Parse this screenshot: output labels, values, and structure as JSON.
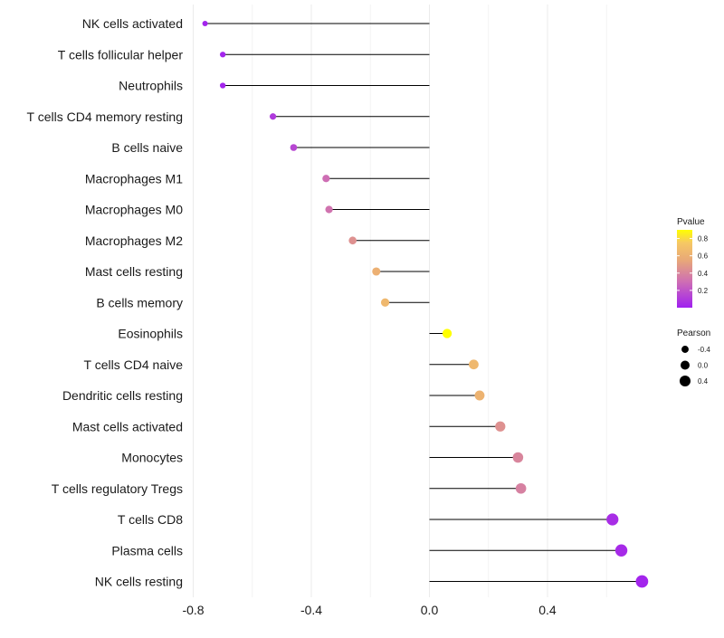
{
  "chart_data": {
    "type": "lollipop",
    "categories": [
      "NK cells activated",
      "T cells follicular helper",
      "Neutrophils",
      "T cells CD4 memory resting",
      "B cells naive",
      "Macrophages M1",
      "Macrophages M0",
      "Macrophages M2",
      "Mast cells resting",
      "B cells memory",
      "Eosinophils",
      "T cells CD4 naive",
      "Dendritic cells resting",
      "Mast cells activated",
      "Monocytes",
      "T cells regulatory  Tregs",
      "T cells CD8",
      "Plasma cells",
      "NK cells resting"
    ],
    "values": [
      -0.76,
      -0.7,
      -0.7,
      -0.53,
      -0.46,
      -0.35,
      -0.34,
      -0.26,
      -0.18,
      -0.15,
      0.06,
      0.15,
      0.17,
      0.24,
      0.3,
      0.31,
      0.62,
      0.65,
      0.72
    ],
    "pvalues": [
      0.02,
      0.02,
      0.02,
      0.1,
      0.15,
      0.3,
      0.32,
      0.45,
      0.6,
      0.65,
      0.9,
      0.65,
      0.62,
      0.45,
      0.4,
      0.38,
      0.05,
      0.04,
      0.02
    ],
    "xlim": [
      -0.82,
      0.82
    ],
    "xticks": [
      "-0.8",
      "-0.4",
      "0.0",
      "0.4"
    ],
    "xtick_values": [
      -0.8,
      -0.4,
      0.0,
      0.4
    ],
    "xlabel": "",
    "ylabel": "",
    "legend": {
      "color": {
        "title": "Pvalue",
        "ticks": [
          "0.8",
          "0.6",
          "0.4",
          "0.2"
        ],
        "tick_values": [
          0.8,
          0.6,
          0.4,
          0.2
        ],
        "range": [
          0.0,
          0.9
        ],
        "low_color": "#a020f0",
        "high_color": "#ffff00"
      },
      "size": {
        "title": "Pearson",
        "labels": [
          "-0.4",
          "0.0",
          "0.4"
        ],
        "values": [
          -0.4,
          0.0,
          0.4
        ]
      },
      "placement": "right"
    },
    "segment_color": "#000000",
    "grid": true
  }
}
